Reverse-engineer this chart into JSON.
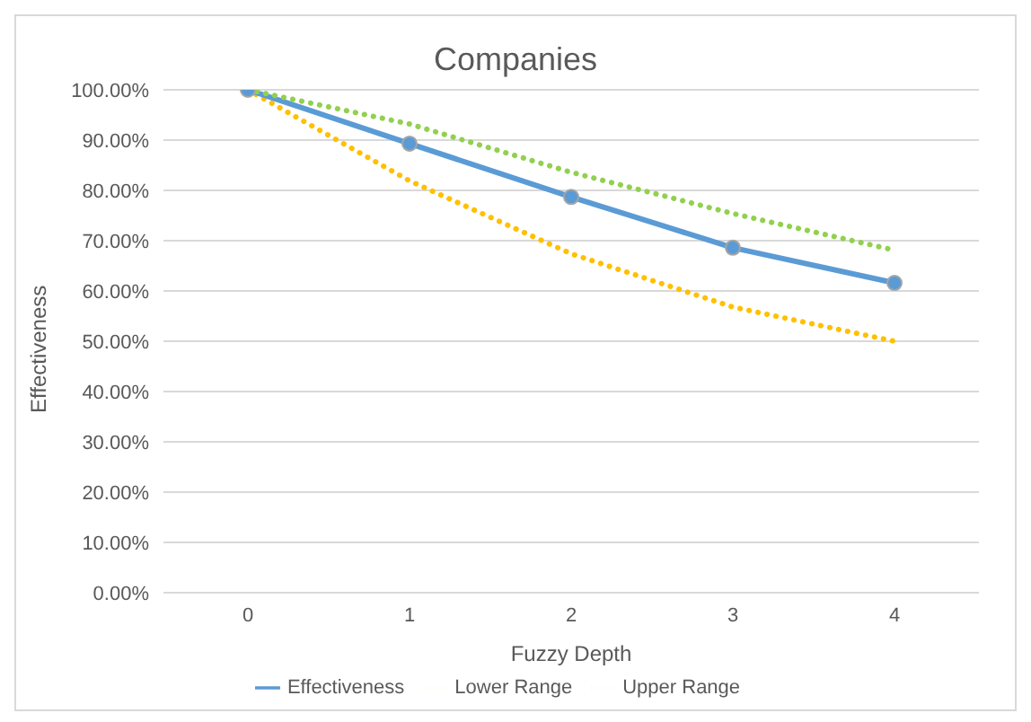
{
  "chart_data": {
    "type": "line",
    "title": "Companies",
    "xlabel": "Fuzzy Depth",
    "ylabel": "Effectiveness",
    "categories": [
      "0",
      "1",
      "2",
      "3",
      "4"
    ],
    "series": [
      {
        "name": "Lower Range",
        "color": "#ffc000",
        "values": [
          100,
          81.9,
          67.4,
          56.8,
          50
        ],
        "line_style": "dotted",
        "marker": "none"
      },
      {
        "name": "Effectiveness",
        "color": "#5b9bd5",
        "values": [
          100,
          89.3,
          78.7,
          68.6,
          61.6
        ],
        "line_style": "solid",
        "marker": "circle"
      },
      {
        "name": "Upper Range",
        "color": "#92d050",
        "values": [
          100,
          93.2,
          83.6,
          75.4,
          68.1
        ],
        "line_style": "dotted",
        "marker": "none"
      }
    ],
    "ylim": [
      0,
      100
    ],
    "yticks": [
      {
        "value": 0,
        "label": "0.00%"
      },
      {
        "value": 10,
        "label": "10.00%"
      },
      {
        "value": 20,
        "label": "20.00%"
      },
      {
        "value": 30,
        "label": "30.00%"
      },
      {
        "value": 40,
        "label": "40.00%"
      },
      {
        "value": 50,
        "label": "50.00%"
      },
      {
        "value": 60,
        "label": "60.00%"
      },
      {
        "value": 70,
        "label": "70.00%"
      },
      {
        "value": 80,
        "label": "80.00%"
      },
      {
        "value": 90,
        "label": "90.00%"
      },
      {
        "value": 100,
        "label": "100.00%"
      }
    ],
    "grid": "y",
    "legend": "bottom"
  }
}
